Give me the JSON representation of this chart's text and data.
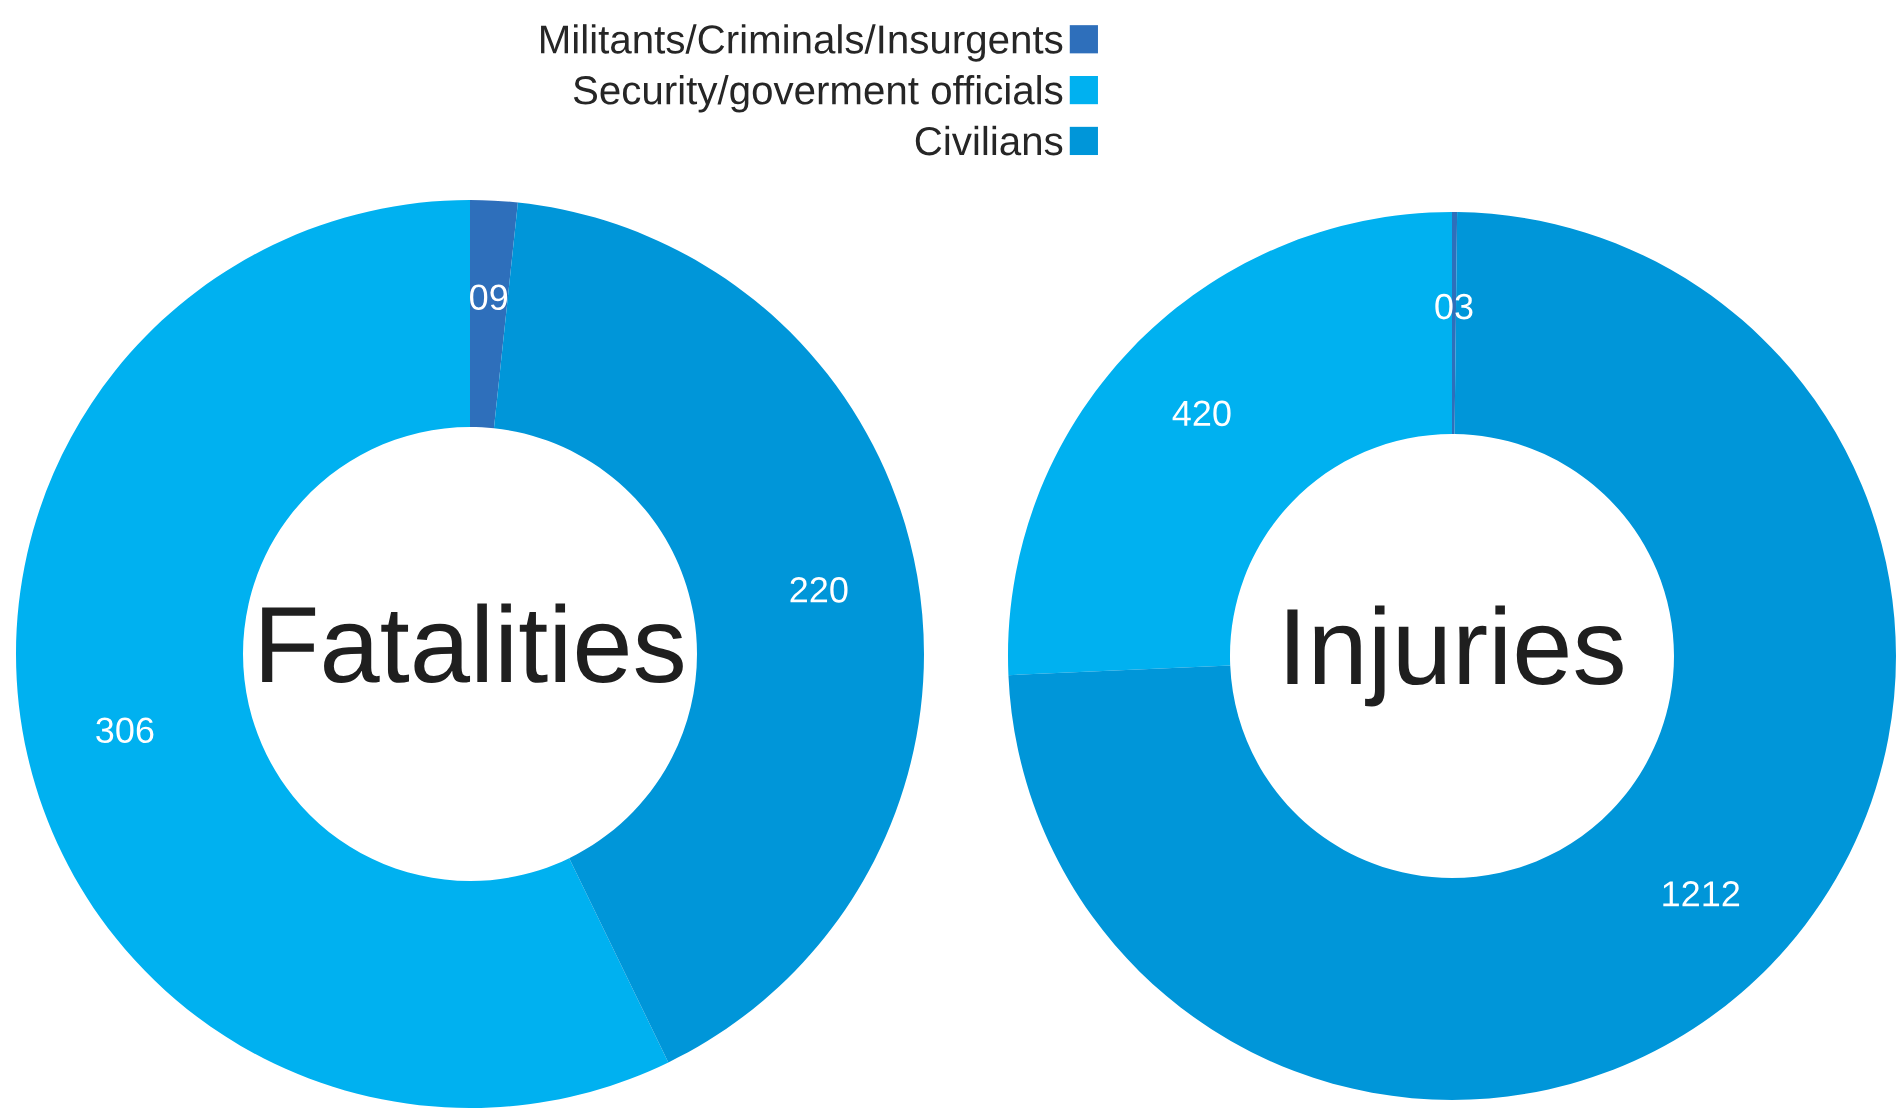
{
  "chart_data": [
    {
      "type": "donut",
      "title": "Fatalities",
      "categories": [
        "Militants/Criminals/Insurgents",
        "Security/goverment officials",
        "Civilians"
      ],
      "values": [
        9,
        306,
        220
      ],
      "colors": [
        "#2e6fbb",
        "#00b1f0",
        "#0096d9"
      ],
      "value_labels": [
        "09",
        "306",
        "220"
      ],
      "legend": "top"
    },
    {
      "type": "donut",
      "title": "Injuries",
      "categories": [
        null,
        null,
        null
      ],
      "values": [
        3,
        420,
        1212
      ],
      "colors": [
        "#2e6fbb",
        "#00b1f0",
        "#0096d9"
      ],
      "value_labels": [
        "03",
        "420",
        "1212"
      ]
    }
  ]
}
